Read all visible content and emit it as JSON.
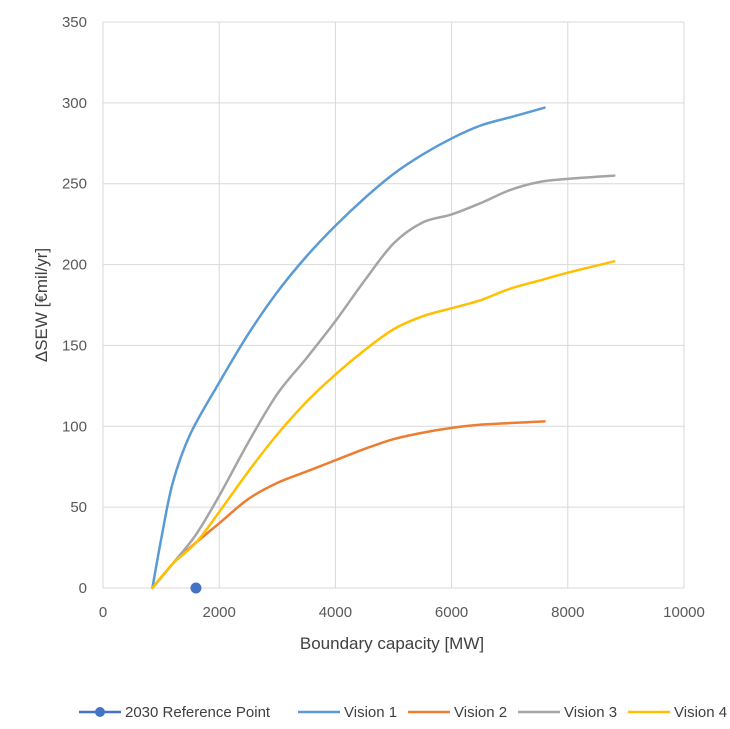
{
  "chart_data": {
    "type": "line",
    "title": "",
    "xlabel": "Boundary capacity [MW]",
    "ylabel": "ΔSEW [€mil/yr]",
    "xlim": [
      0,
      10000
    ],
    "ylim": [
      0,
      350
    ],
    "xticks": [
      0,
      2000,
      4000,
      6000,
      8000,
      10000
    ],
    "yticks": [
      0,
      50,
      100,
      150,
      200,
      250,
      300,
      350
    ],
    "grid": true,
    "legend_position": "bottom",
    "series": [
      {
        "name": "2030 Reference Point",
        "kind": "point",
        "color": "#4472c4",
        "points": [
          [
            1600,
            0
          ]
        ]
      },
      {
        "name": "Vision 1",
        "kind": "line",
        "color": "#5b9bd5",
        "points": [
          [
            850,
            0
          ],
          [
            1000,
            30
          ],
          [
            1200,
            65
          ],
          [
            1500,
            95
          ],
          [
            2000,
            127
          ],
          [
            2500,
            157
          ],
          [
            3000,
            183
          ],
          [
            3500,
            205
          ],
          [
            4000,
            224
          ],
          [
            4500,
            241
          ],
          [
            5000,
            256
          ],
          [
            5500,
            268
          ],
          [
            6000,
            278
          ],
          [
            6500,
            286
          ],
          [
            7000,
            291
          ],
          [
            7600,
            297
          ]
        ]
      },
      {
        "name": "Vision 2",
        "kind": "line",
        "color": "#ed7d31",
        "points": [
          [
            850,
            0
          ],
          [
            1200,
            15
          ],
          [
            1500,
            25
          ],
          [
            2000,
            40
          ],
          [
            2500,
            55
          ],
          [
            3000,
            65
          ],
          [
            3500,
            72
          ],
          [
            4000,
            79
          ],
          [
            4500,
            86
          ],
          [
            5000,
            92
          ],
          [
            5500,
            96
          ],
          [
            6000,
            99
          ],
          [
            6500,
            101
          ],
          [
            7000,
            102
          ],
          [
            7600,
            103
          ]
        ]
      },
      {
        "name": "Vision 3",
        "kind": "line",
        "color": "#a5a5a5",
        "points": [
          [
            850,
            0
          ],
          [
            1200,
            15
          ],
          [
            1600,
            33
          ],
          [
            2000,
            57
          ],
          [
            2500,
            90
          ],
          [
            3000,
            120
          ],
          [
            3500,
            142
          ],
          [
            4000,
            165
          ],
          [
            4500,
            190
          ],
          [
            5000,
            213
          ],
          [
            5500,
            226
          ],
          [
            6000,
            231
          ],
          [
            6500,
            238
          ],
          [
            7000,
            246
          ],
          [
            7500,
            251
          ],
          [
            8000,
            253
          ],
          [
            8800,
            255
          ]
        ]
      },
      {
        "name": "Vision 4",
        "kind": "line",
        "color": "#ffc000",
        "points": [
          [
            850,
            0
          ],
          [
            1200,
            15
          ],
          [
            1600,
            28
          ],
          [
            2000,
            47
          ],
          [
            2500,
            72
          ],
          [
            3000,
            95
          ],
          [
            3500,
            115
          ],
          [
            4000,
            132
          ],
          [
            4500,
            147
          ],
          [
            5000,
            160
          ],
          [
            5500,
            168
          ],
          [
            6000,
            173
          ],
          [
            6500,
            178
          ],
          [
            7000,
            185
          ],
          [
            7500,
            190
          ],
          [
            8000,
            195
          ],
          [
            8800,
            202
          ]
        ]
      }
    ]
  }
}
